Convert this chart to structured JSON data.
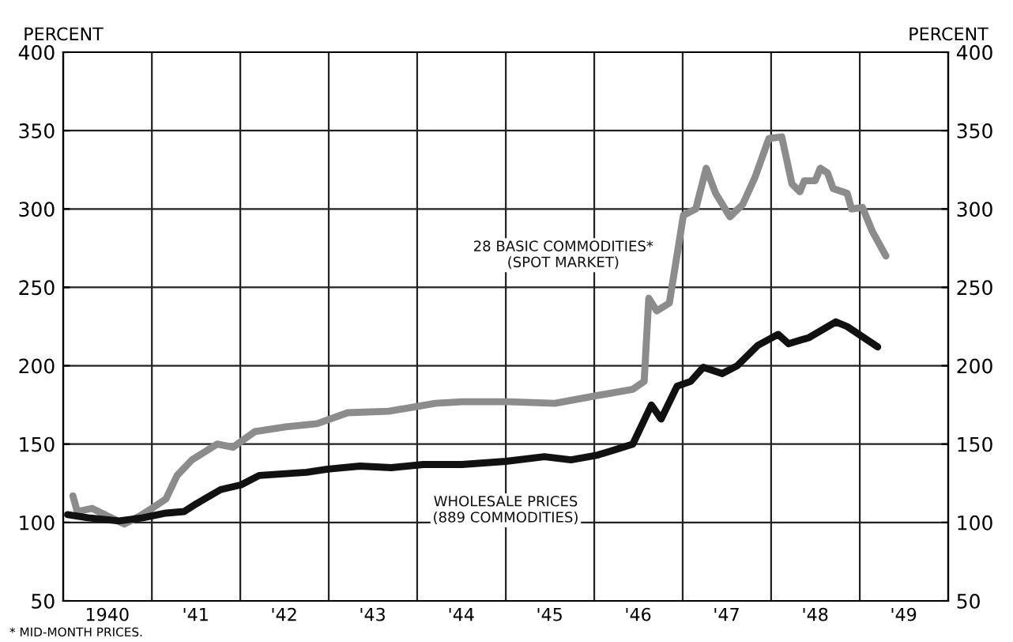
{
  "chart_data": {
    "type": "line",
    "ylabel": "PERCENT",
    "y2label": "PERCENT",
    "xlim": [
      "1940-01-01",
      "1950-01-01"
    ],
    "ylim": [
      50,
      400
    ],
    "y2lim": [
      50,
      400
    ],
    "xticks": [
      {
        "value": "1940-07-01",
        "label": "1940"
      },
      {
        "value": "1941-07-01",
        "label": "'41"
      },
      {
        "value": "1942-07-01",
        "label": "'42"
      },
      {
        "value": "1943-07-01",
        "label": "'43"
      },
      {
        "value": "1944-07-01",
        "label": "'44"
      },
      {
        "value": "1945-07-01",
        "label": "'45"
      },
      {
        "value": "1946-07-01",
        "label": "'46"
      },
      {
        "value": "1947-07-01",
        "label": "'47"
      },
      {
        "value": "1948-07-01",
        "label": "'48"
      },
      {
        "value": "1949-07-01",
        "label": "'49"
      },
      {
        "value": "1941-01-01",
        "label": null
      },
      {
        "value": "1942-01-01",
        "label": null
      },
      {
        "value": "1943-01-01",
        "label": null
      },
      {
        "value": "1944-01-01",
        "label": null
      },
      {
        "value": "1945-01-01",
        "label": null
      },
      {
        "value": "1946-01-01",
        "label": null
      },
      {
        "value": "1947-01-01",
        "label": null
      },
      {
        "value": "1948-01-01",
        "label": null
      },
      {
        "value": "1949-01-01",
        "label": null
      }
    ],
    "yticks": [
      50,
      100,
      150,
      200,
      250,
      300,
      350,
      400
    ],
    "y2ticks": [
      50,
      100,
      150,
      200,
      250,
      300,
      350,
      400
    ],
    "grid": true,
    "legend": false,
    "marker": "none",
    "line_style": "solid",
    "series": [
      {
        "name": "28 BASIC COMMODITIES*\n(SPOT MARKET)",
        "color": "#8c8c8c",
        "x": [
          "1940-02-10",
          "1940-02-28",
          "1940-04-29",
          "1940-07-04",
          "1940-09-09",
          "1940-11-10",
          "1941-01-01",
          "1941-02-28",
          "1941-04-15",
          "1941-06-16",
          "1941-09-27",
          "1941-12-02",
          "1942-03-02",
          "1942-07-08",
          "1942-11-14",
          "1943-03-20",
          "1943-09-06",
          "1944-03-16",
          "1944-07-04",
          "1945-01-15",
          "1945-07-22",
          "1946-01-15",
          "1946-06-09",
          "1946-07-26",
          "1946-08-14",
          "1946-09-16",
          "1946-11-07",
          "1947-01-04",
          "1947-02-24",
          "1947-04-08",
          "1947-05-17",
          "1947-07-15",
          "1947-09-06",
          "1947-10-26",
          "1947-12-23",
          "1948-02-14",
          "1948-03-27",
          "1948-04-29",
          "1948-05-17",
          "1948-07-01",
          "1948-07-22",
          "1948-08-21",
          "1948-09-13",
          "1948-11-10",
          "1948-11-28",
          "1949-01-12",
          "1949-02-21",
          "1949-04-19"
        ],
        "values": [
          117,
          107,
          109,
          104,
          99,
          104,
          109,
          115,
          130,
          140,
          150,
          148,
          158,
          161,
          163,
          170,
          171,
          176,
          177,
          177,
          176,
          181,
          185,
          190,
          243,
          235,
          240,
          296,
          300,
          326,
          310,
          295,
          303,
          320,
          345,
          346,
          316,
          311,
          318,
          318,
          326,
          323,
          313,
          310,
          300,
          301,
          286,
          270
        ]
      },
      {
        "name": "WHOLESALE PRICES\n(889 COMMODITIES)",
        "color": "#111111",
        "x": [
          "1940-01-19",
          "1940-04-12",
          "1940-08-18",
          "1940-11-25",
          "1941-02-28",
          "1941-05-14",
          "1941-07-04",
          "1941-10-12",
          "1942-01-04",
          "1942-03-20",
          "1942-06-24",
          "1942-10-01",
          "1942-12-27",
          "1943-05-10",
          "1943-09-16",
          "1944-01-26",
          "1944-07-04",
          "1945-01-01",
          "1945-06-09",
          "1945-09-27",
          "1946-01-15",
          "1946-04-08",
          "1946-06-09",
          "1946-08-25",
          "1946-10-04",
          "1946-12-09",
          "1947-02-03",
          "1947-03-27",
          "1947-06-13",
          "1947-08-14",
          "1947-11-07",
          "1948-01-30",
          "1948-03-13",
          "1948-06-06",
          "1948-09-24",
          "1948-11-10",
          "1949-03-16"
        ],
        "values": [
          105,
          103,
          101,
          103,
          106,
          107,
          112,
          121,
          124,
          130,
          131,
          132,
          134,
          136,
          135,
          137,
          137,
          139,
          142,
          140,
          143,
          147,
          150,
          175,
          166,
          187,
          190,
          199,
          195,
          200,
          213,
          220,
          214,
          218,
          228,
          225,
          212
        ]
      }
    ],
    "annotations": [
      "* MID-MONTH PRICES."
    ]
  }
}
